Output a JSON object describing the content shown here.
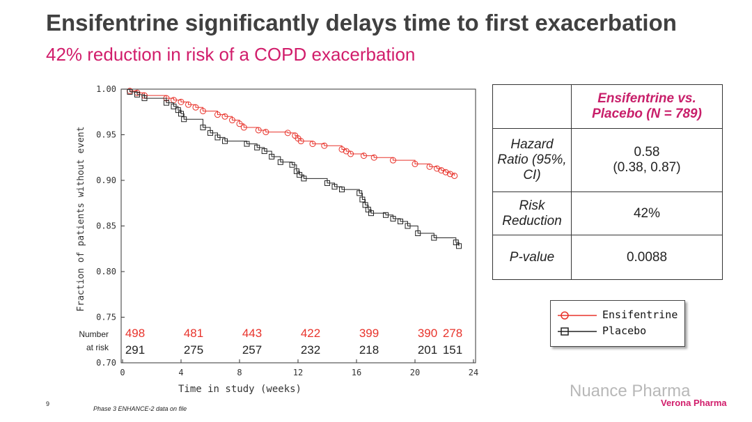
{
  "header": {
    "title": "Ensifentrine significantly delays time to first exacerbation",
    "subtitle": "42% reduction in risk of a COPD exacerbation"
  },
  "colors": {
    "ensifentrine": "#e8332b",
    "placebo": "#222222",
    "accent": "#d11d6b"
  },
  "chart_data": {
    "type": "line",
    "xlabel": "Time in study (weeks)",
    "ylabel": "Fraction of patients without event",
    "xlim": [
      0,
      24
    ],
    "ylim": [
      0.7,
      1.0
    ],
    "x_ticks": [
      0,
      4,
      8,
      12,
      16,
      20,
      24
    ],
    "y_ticks": [
      "0.70",
      "0.75",
      "0.80",
      "0.85",
      "0.90",
      "0.95",
      "1.00"
    ],
    "grid": false,
    "series": [
      {
        "name": "Ensifentrine",
        "color": "#e8332b",
        "marker": "circle",
        "x": [
          0,
          0.5,
          1.0,
          1.5,
          3.0,
          3.5,
          4.0,
          4.5,
          5.0,
          5.5,
          6.5,
          7.0,
          7.5,
          8.0,
          8.3,
          9.3,
          9.8,
          11.3,
          11.8,
          12.0,
          12.2,
          13.0,
          13.8,
          15.0,
          15.3,
          15.6,
          16.5,
          17.2,
          18.5,
          20.0,
          21.0,
          21.5,
          21.8,
          22.1,
          22.4,
          22.7
        ],
        "y": [
          1.0,
          0.998,
          0.996,
          0.993,
          0.99,
          0.988,
          0.986,
          0.983,
          0.98,
          0.976,
          0.972,
          0.97,
          0.966,
          0.962,
          0.958,
          0.955,
          0.953,
          0.952,
          0.949,
          0.946,
          0.943,
          0.94,
          0.938,
          0.934,
          0.932,
          0.929,
          0.927,
          0.925,
          0.922,
          0.918,
          0.915,
          0.913,
          0.911,
          0.909,
          0.907,
          0.905
        ]
      },
      {
        "name": "Placebo",
        "color": "#222222",
        "marker": "square",
        "x": [
          0,
          0.5,
          1.0,
          1.5,
          3.0,
          3.5,
          3.8,
          4.0,
          4.2,
          5.5,
          6.0,
          6.5,
          7.0,
          8.5,
          9.2,
          9.7,
          10.2,
          10.8,
          11.6,
          11.9,
          12.1,
          12.4,
          14.0,
          14.5,
          15.0,
          16.2,
          16.4,
          16.6,
          16.8,
          17.0,
          18.0,
          18.5,
          19.0,
          19.5,
          20.2,
          21.3,
          22.8,
          23.0
        ],
        "y": [
          1.0,
          0.997,
          0.994,
          0.99,
          0.985,
          0.981,
          0.977,
          0.973,
          0.967,
          0.958,
          0.952,
          0.947,
          0.943,
          0.94,
          0.936,
          0.932,
          0.926,
          0.92,
          0.917,
          0.91,
          0.906,
          0.902,
          0.897,
          0.893,
          0.89,
          0.886,
          0.879,
          0.873,
          0.868,
          0.864,
          0.862,
          0.858,
          0.855,
          0.85,
          0.842,
          0.837,
          0.832,
          0.828
        ]
      }
    ],
    "at_risk": {
      "label_line1": "Number",
      "label_line2": "at risk",
      "weeks": [
        0,
        4,
        8,
        12,
        16,
        20,
        24
      ],
      "ensifentrine": [
        "498",
        "481",
        "443",
        "422",
        "399",
        "390",
        "278"
      ],
      "placebo": [
        "291",
        "275",
        "257",
        "232",
        "218",
        "201",
        "151"
      ]
    }
  },
  "results_table": {
    "column_header": "Ensifentrine vs. Placebo (N = 789)",
    "rows": [
      {
        "label": "Hazard Ratio (95%, CI)",
        "value_line1": "0.58",
        "value_line2": "(0.38, 0.87)"
      },
      {
        "label": "Risk Reduction",
        "value": "42%"
      },
      {
        "label": "P-value",
        "value": "0.0088"
      }
    ]
  },
  "legend": {
    "entries": [
      "Ensifentrine",
      "Placebo"
    ]
  },
  "footer": {
    "page_number": "9",
    "note": "Phase 3 ENHANCE-2 data on file",
    "watermark": "Nuance Pharma",
    "brand": "Verona Pharma"
  }
}
